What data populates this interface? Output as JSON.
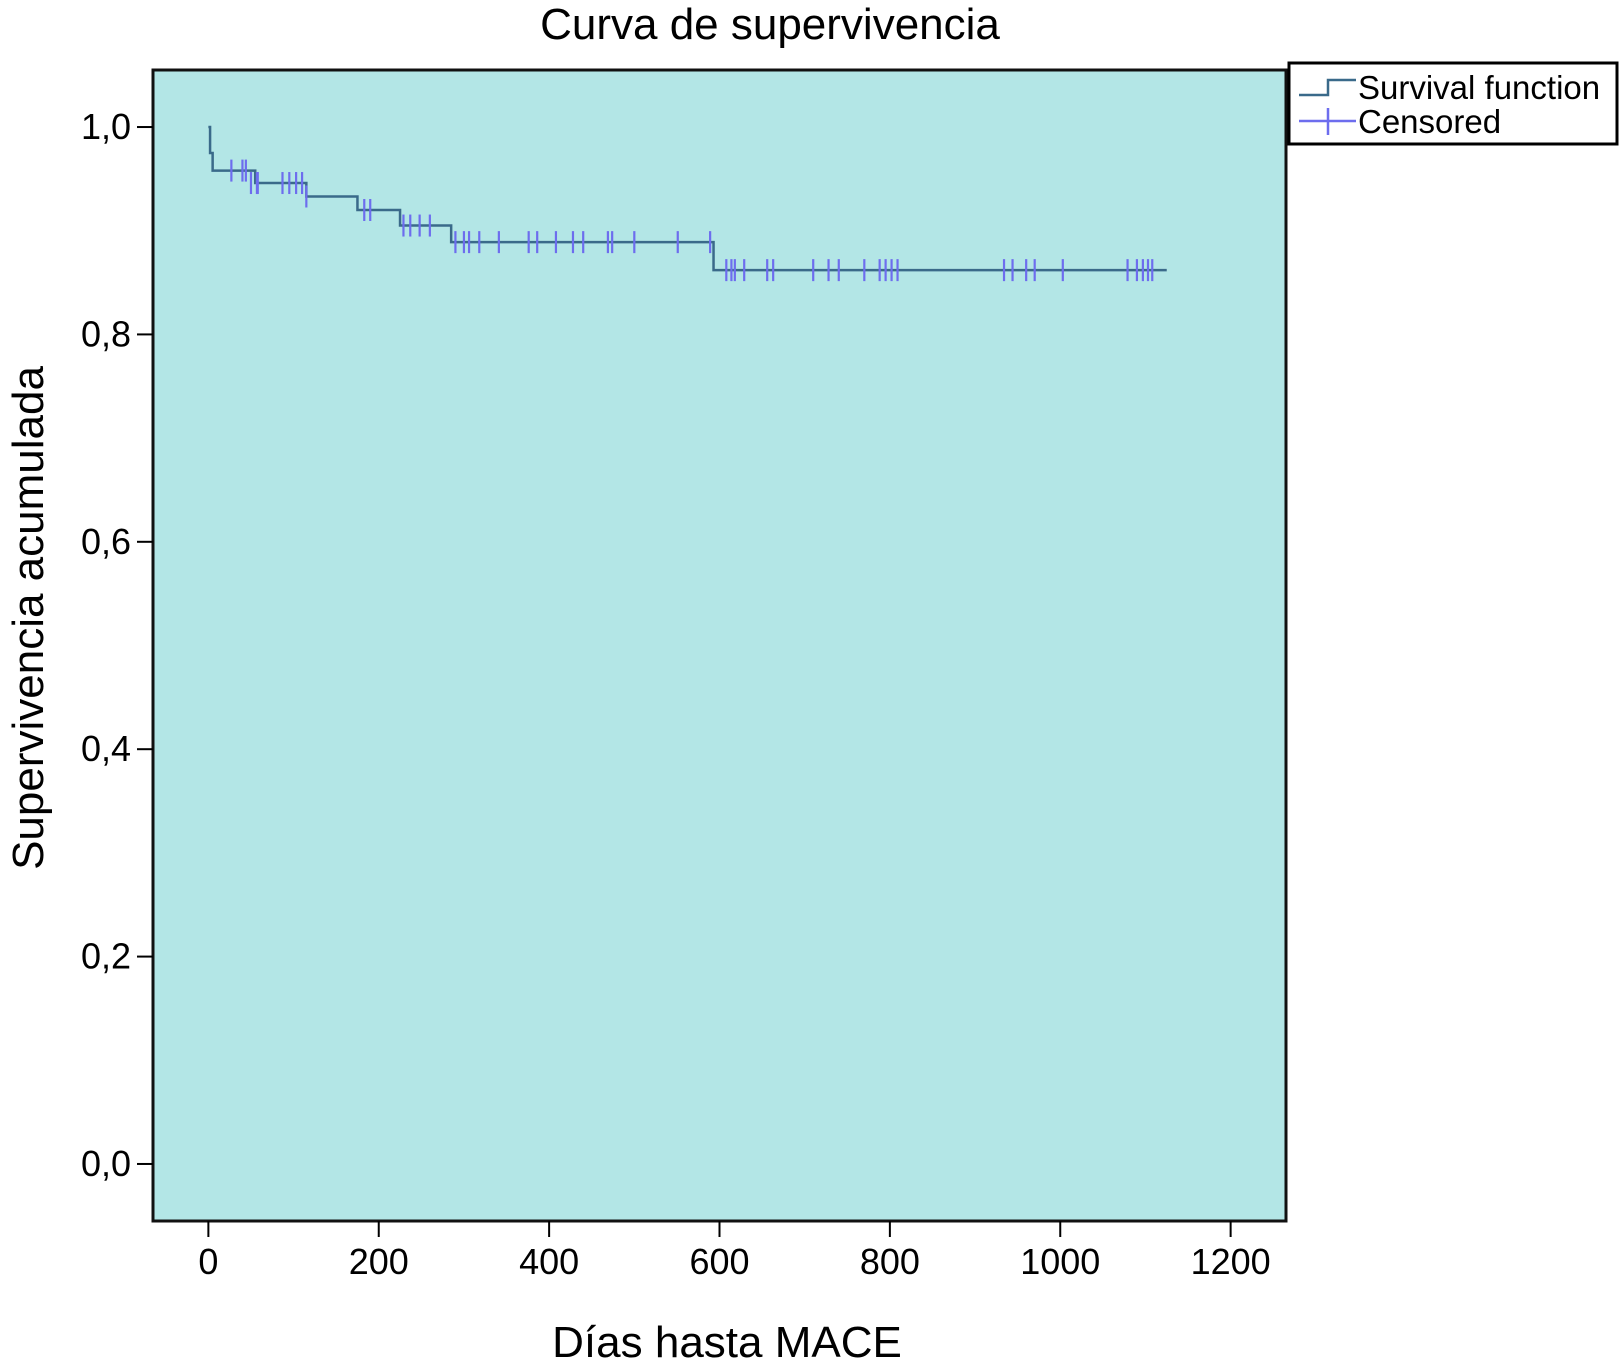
{
  "chart_data": {
    "type": "line",
    "subtype": "kaplan-meier step",
    "title": "Curva de supervivencia",
    "xlabel": "Días hasta MACE",
    "ylabel": "Supervivencia acumulada",
    "xlim": [
      -65,
      1265
    ],
    "ylim": [
      -0.055,
      1.055
    ],
    "x_ticks": [
      0,
      200,
      400,
      600,
      800,
      1000,
      1200
    ],
    "x_tick_labels": [
      "0",
      "200",
      "400",
      "600",
      "800",
      "1000",
      "1200"
    ],
    "y_ticks": [
      0.0,
      0.2,
      0.4,
      0.6,
      0.8,
      1.0
    ],
    "y_tick_labels": [
      "0,0",
      "0,2",
      "0,4",
      "0,6",
      "0,8",
      "1,0"
    ],
    "grid": false,
    "legend_position": "top-right-outside",
    "colors": {
      "plot_background": "#b3e6e6",
      "survival_line": "#3a6a8a",
      "censored_marks": "#6d6dee"
    },
    "series": [
      {
        "name": "Survival function",
        "steps": [
          [
            0,
            1.0
          ],
          [
            2,
            0.975
          ],
          [
            5,
            0.958
          ],
          [
            55,
            0.946
          ],
          [
            115,
            0.933
          ],
          [
            175,
            0.92
          ],
          [
            225,
            0.905
          ],
          [
            285,
            0.889
          ],
          [
            593,
            0.862
          ],
          [
            1125,
            0.862
          ]
        ]
      },
      {
        "name": "Censored",
        "points": [
          [
            27,
            0.958
          ],
          [
            40,
            0.958
          ],
          [
            44,
            0.958
          ],
          [
            50,
            0.946
          ],
          [
            57,
            0.946
          ],
          [
            58,
            0.946
          ],
          [
            87,
            0.946
          ],
          [
            95,
            0.946
          ],
          [
            103,
            0.946
          ],
          [
            110,
            0.946
          ],
          [
            115,
            0.933
          ],
          [
            183,
            0.92
          ],
          [
            190,
            0.92
          ],
          [
            229,
            0.905
          ],
          [
            237,
            0.905
          ],
          [
            248,
            0.905
          ],
          [
            260,
            0.905
          ],
          [
            290,
            0.889
          ],
          [
            300,
            0.889
          ],
          [
            306,
            0.889
          ],
          [
            318,
            0.889
          ],
          [
            341,
            0.889
          ],
          [
            376,
            0.889
          ],
          [
            386,
            0.889
          ],
          [
            408,
            0.889
          ],
          [
            428,
            0.889
          ],
          [
            440,
            0.889
          ],
          [
            469,
            0.889
          ],
          [
            474,
            0.889
          ],
          [
            500,
            0.889
          ],
          [
            551,
            0.889
          ],
          [
            589,
            0.889
          ],
          [
            608,
            0.862
          ],
          [
            614,
            0.862
          ],
          [
            618,
            0.862
          ],
          [
            629,
            0.862
          ],
          [
            656,
            0.862
          ],
          [
            663,
            0.862
          ],
          [
            710,
            0.862
          ],
          [
            728,
            0.862
          ],
          [
            740,
            0.862
          ],
          [
            770,
            0.862
          ],
          [
            788,
            0.862
          ],
          [
            795,
            0.862
          ],
          [
            802,
            0.862
          ],
          [
            809,
            0.862
          ],
          [
            934,
            0.862
          ],
          [
            944,
            0.862
          ],
          [
            960,
            0.862
          ],
          [
            970,
            0.862
          ],
          [
            1003,
            0.862
          ],
          [
            1079,
            0.862
          ],
          [
            1090,
            0.862
          ],
          [
            1097,
            0.862
          ],
          [
            1103,
            0.862
          ],
          [
            1108,
            0.862
          ]
        ]
      }
    ]
  }
}
